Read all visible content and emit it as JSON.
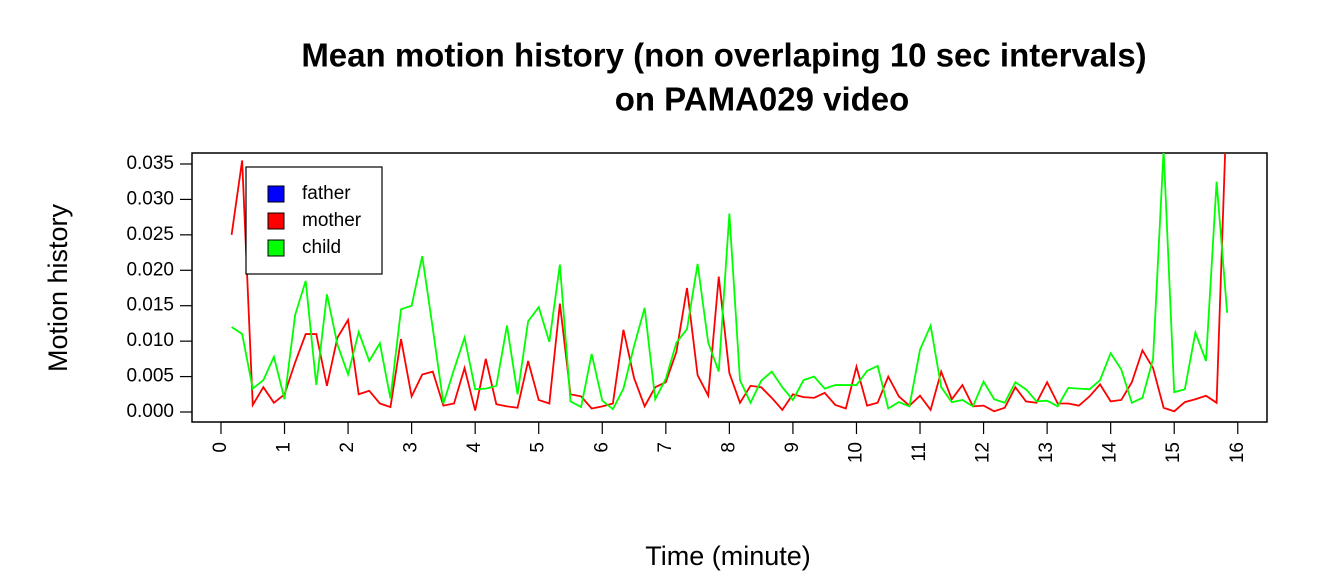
{
  "chart_data": {
    "type": "line",
    "title": "Mean motion history (non overlaping 10 sec intervals)",
    "subtitle": "on PAMA029 video",
    "xlabel": "Time (minute)",
    "ylabel": "Motion history",
    "x": [
      0.167,
      0.333,
      0.5,
      0.667,
      0.833,
      1,
      1.167,
      1.333,
      1.5,
      1.667,
      1.833,
      2,
      2.167,
      2.333,
      2.5,
      2.667,
      2.833,
      3,
      3.167,
      3.333,
      3.5,
      3.667,
      3.833,
      4,
      4.167,
      4.333,
      4.5,
      4.667,
      4.833,
      5,
      5.167,
      5.333,
      5.5,
      5.667,
      5.833,
      6,
      6.167,
      6.333,
      6.5,
      6.667,
      6.833,
      7,
      7.167,
      7.333,
      7.5,
      7.667,
      7.833,
      8,
      8.167,
      8.333,
      8.5,
      8.667,
      8.833,
      9,
      9.167,
      9.333,
      9.5,
      9.667,
      9.833,
      10,
      10.167,
      10.333,
      10.5,
      10.667,
      10.833,
      11,
      11.167,
      11.333,
      11.5,
      11.667,
      11.833,
      12,
      12.167,
      12.333,
      12.5,
      12.667,
      12.833,
      13,
      13.167,
      13.333,
      13.5,
      13.667,
      13.833,
      14,
      14.167,
      14.333,
      14.5,
      14.667,
      14.833,
      15,
      15.167,
      15.333,
      15.5,
      15.667,
      15.833
    ],
    "series": [
      {
        "name": "father",
        "color": "#0000ff",
        "values": [
          null,
          null,
          null,
          null,
          null,
          null,
          null,
          null,
          null,
          null,
          null,
          null,
          null,
          null,
          null,
          null,
          null,
          null,
          null,
          null,
          null,
          null,
          null,
          null,
          null,
          null,
          null,
          null,
          null,
          null,
          null,
          null,
          null,
          null,
          null,
          null,
          null,
          null,
          null,
          null,
          null,
          null,
          null,
          null,
          null,
          null,
          null,
          null,
          null,
          null,
          null,
          null,
          null,
          null,
          null,
          null,
          null,
          null,
          null,
          null,
          null,
          null,
          null,
          null,
          null,
          null,
          null,
          null,
          null,
          null,
          null,
          null,
          null,
          null,
          null,
          null,
          null,
          null,
          null,
          null,
          null,
          null,
          null,
          null,
          null,
          null,
          null,
          null,
          null,
          null,
          null,
          null,
          null,
          null,
          null
        ]
      },
      {
        "name": "mother",
        "color": "#ff0000",
        "values": [
          0.025,
          0.0355,
          0.001,
          0.0035,
          0.0013,
          0.0025,
          0.007,
          0.011,
          0.011,
          0.0037,
          0.0105,
          0.013,
          0.0025,
          0.003,
          0.0012,
          0.0007,
          0.0103,
          0.0022,
          0.0053,
          0.0057,
          0.0009,
          0.0012,
          0.0062,
          0.0002,
          0.0075,
          0.0011,
          0.0008,
          0.0006,
          0.0072,
          0.0017,
          0.0012,
          0.0153,
          0.0025,
          0.0022,
          0.0005,
          0.0008,
          0.0012,
          0.0116,
          0.0048,
          0.0008,
          0.0035,
          0.0042,
          0.0085,
          0.0175,
          0.0052,
          0.0023,
          0.0191,
          0.0055,
          0.0013,
          0.0037,
          0.0035,
          0.002,
          0.0003,
          0.0025,
          0.0021,
          0.002,
          0.0027,
          0.001,
          0.0005,
          0.0064,
          0.0009,
          0.0013,
          0.005,
          0.0022,
          0.0009,
          0.0023,
          0.0003,
          0.0057,
          0.0018,
          0.0038,
          0.0008,
          0.0009,
          0.0001,
          0.0006,
          0.0035,
          0.0015,
          0.0013,
          0.0042,
          0.0012,
          0.0012,
          0.0009,
          0.0022,
          0.0039,
          0.0015,
          0.0017,
          0.0042,
          0.0087,
          0.0062,
          0.0006,
          0.0001,
          0.0014,
          0.0018,
          0.0023,
          0.0013,
          0.045
        ]
      },
      {
        "name": "child",
        "color": "#00ff00",
        "values": [
          0.012,
          0.011,
          0.0033,
          0.0045,
          0.0078,
          0.0018,
          0.0137,
          0.0185,
          0.0038,
          0.0166,
          0.0095,
          0.0053,
          0.0113,
          0.0072,
          0.0097,
          0.0019,
          0.0145,
          0.015,
          0.022,
          0.0118,
          0.0012,
          0.006,
          0.0105,
          0.0032,
          0.0033,
          0.0037,
          0.0122,
          0.0025,
          0.0128,
          0.0148,
          0.0099,
          0.0208,
          0.0015,
          0.0007,
          0.0082,
          0.0016,
          0.0004,
          0.0033,
          0.0093,
          0.0147,
          0.0018,
          0.0047,
          0.0098,
          0.0117,
          0.0209,
          0.0098,
          0.0057,
          0.028,
          0.0045,
          0.0013,
          0.0044,
          0.0057,
          0.0035,
          0.0017,
          0.0045,
          0.005,
          0.0033,
          0.0038,
          0.0038,
          0.0038,
          0.0058,
          0.0065,
          0.0005,
          0.0014,
          0.0008,
          0.0088,
          0.0122,
          0.0035,
          0.0014,
          0.0017,
          0.0008,
          0.0043,
          0.0018,
          0.0013,
          0.0042,
          0.0032,
          0.0015,
          0.0016,
          0.0008,
          0.0034,
          0.0033,
          0.0032,
          0.0045,
          0.0083,
          0.006,
          0.0013,
          0.002,
          0.0075,
          0.037,
          0.0028,
          0.0032,
          0.0112,
          0.0072,
          0.0325,
          0.014
        ]
      }
    ],
    "xlim": [
      -0.456,
      16.46
    ],
    "xticks": [
      0,
      1,
      2,
      3,
      4,
      5,
      6,
      7,
      8,
      9,
      10,
      11,
      12,
      13,
      14,
      15,
      16
    ],
    "ylim": [
      -0.00141,
      0.03655
    ],
    "yticks": [
      {
        "value": 0,
        "label": "0.000"
      },
      0.005,
      {
        "value": 0.01,
        "label": "0.010"
      },
      0.015,
      {
        "value": 0.02,
        "label": "0.020"
      },
      0.025,
      {
        "value": 0.03,
        "label": "0.030"
      },
      0.035
    ],
    "legend": "top-left"
  }
}
